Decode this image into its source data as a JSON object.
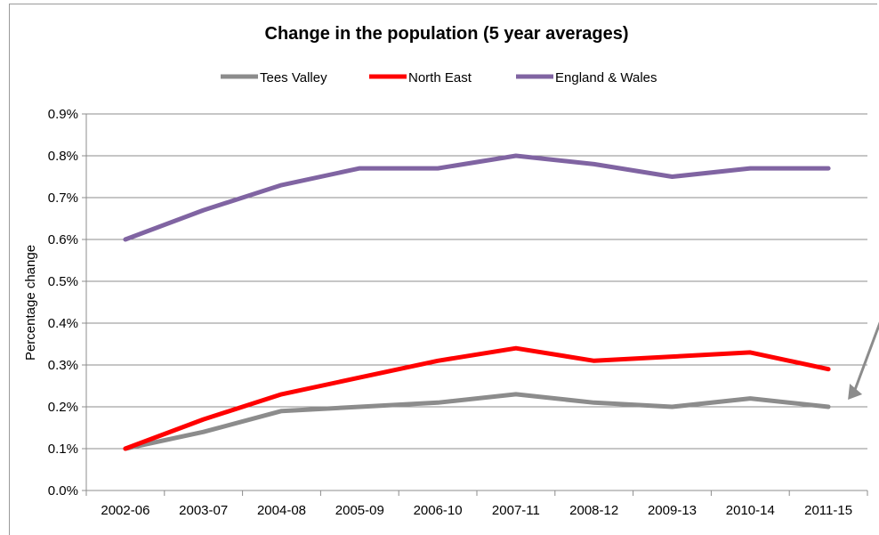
{
  "chart_data": {
    "type": "line",
    "title": "Change in the population  (5 year averages)",
    "xlabel": "",
    "ylabel": "Percentage change",
    "categories": [
      "2002-06",
      "2003-07",
      "2004-08",
      "2005-09",
      "2006-10",
      "2007-11",
      "2008-12",
      "2009-13",
      "2010-14",
      "2011-15"
    ],
    "y_ticks": [
      "0.0%",
      "0.1%",
      "0.2%",
      "0.3%",
      "0.4%",
      "0.5%",
      "0.6%",
      "0.7%",
      "0.8%",
      "0.9%"
    ],
    "ylim": [
      0,
      0.9
    ],
    "grid": true,
    "legend_position": "top",
    "series": [
      {
        "name": "Tees Valley",
        "color": "#8c8c8c",
        "values": [
          0.1,
          0.14,
          0.19,
          0.2,
          0.21,
          0.23,
          0.21,
          0.2,
          0.22,
          0.2
        ]
      },
      {
        "name": "North East",
        "color": "#ff0000",
        "values": [
          0.1,
          0.17,
          0.23,
          0.27,
          0.31,
          0.34,
          0.31,
          0.32,
          0.33,
          0.29
        ]
      },
      {
        "name": "England & Wales",
        "color": "#8064a2",
        "values": [
          0.6,
          0.67,
          0.73,
          0.77,
          0.77,
          0.8,
          0.78,
          0.75,
          0.77,
          0.77
        ]
      }
    ],
    "annotation": {
      "type": "arrow",
      "color": "#8c8c8c",
      "points_to": "Tees Valley 2011-15"
    }
  }
}
